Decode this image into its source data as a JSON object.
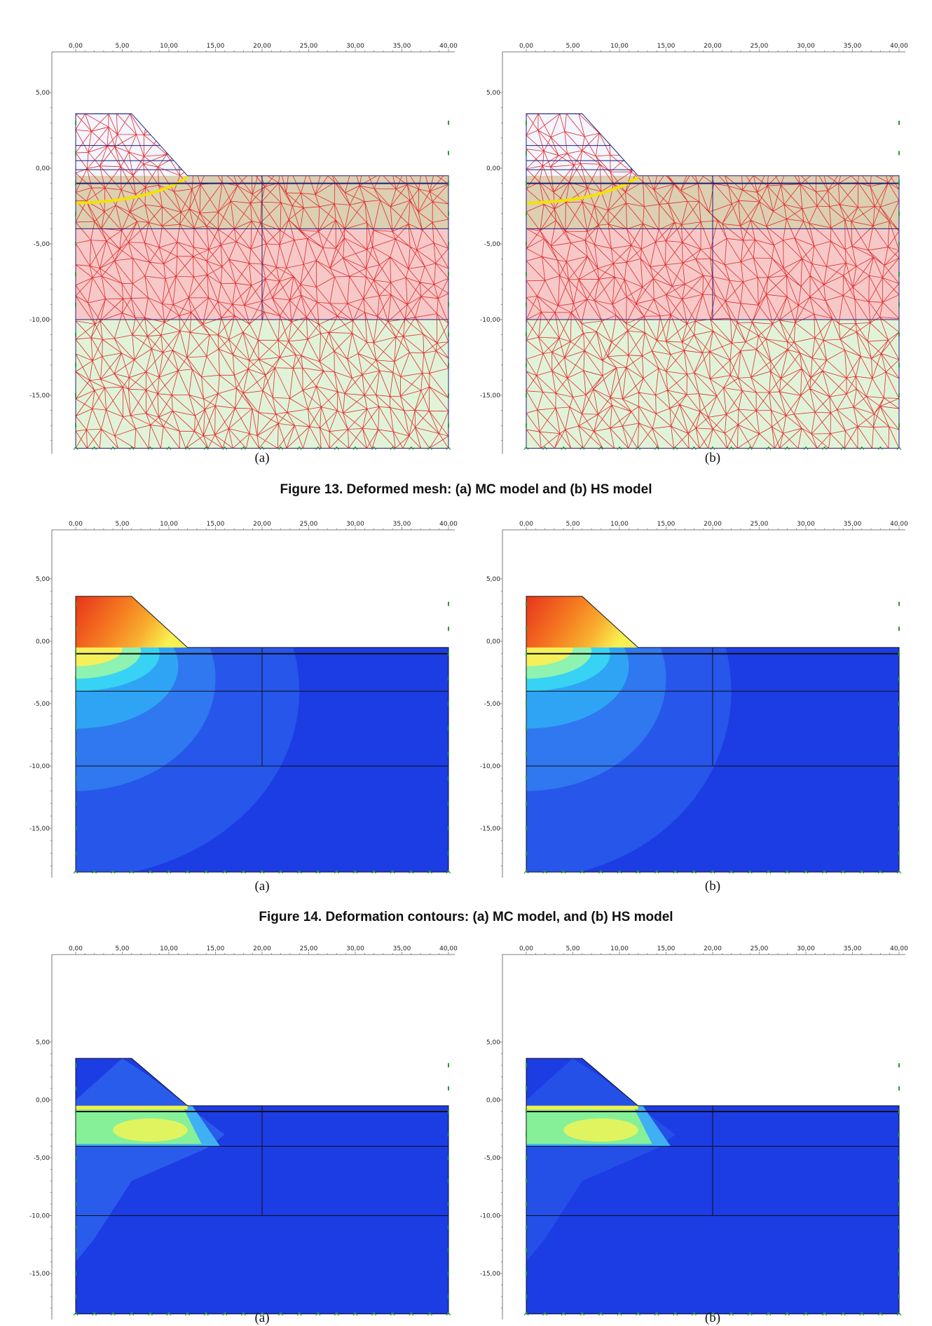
{
  "axis": {
    "xticks": [
      "0,00",
      "5,00",
      "10,00",
      "15,00",
      "20,00",
      "25,00",
      "30,00",
      "35,00",
      "40,00"
    ],
    "yticks": [
      "5,00",
      "0,00",
      "-5,00",
      "-10,00",
      "-15,00"
    ]
  },
  "figures": [
    {
      "panels": [
        {
          "label": "(a)"
        },
        {
          "label": "(b)"
        }
      ],
      "caption": "Figure 13. Deformed mesh: (a) MC model and (b) HS model"
    },
    {
      "panels": [
        {
          "label": "(a)"
        },
        {
          "label": "(b)"
        }
      ],
      "caption": "Figure 14. Deformation contours: (a) MC model, and (b) HS model"
    },
    {
      "panels": [
        {
          "label": "(a)"
        },
        {
          "label": "(b)"
        }
      ]
    }
  ]
}
